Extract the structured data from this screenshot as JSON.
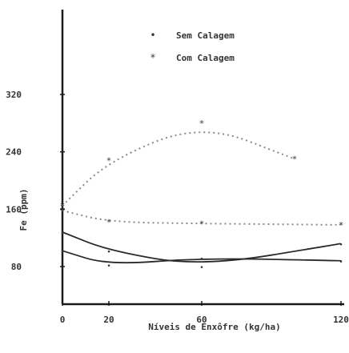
{
  "chart_data": {
    "type": "line",
    "title": "",
    "xlabel": "Níveis de Enxôfre (kg/ha)",
    "ylabel": "Fe (ppm)",
    "xlim": [
      0,
      120
    ],
    "ylim": [
      20,
      420
    ],
    "xticks": [
      0,
      20,
      60,
      120
    ],
    "xtick_labels": [
      "0",
      "20",
      "60",
      "120"
    ],
    "yticks": [
      80,
      160,
      240,
      320
    ],
    "ytick_labels": [
      "80",
      "160",
      "240",
      "320"
    ],
    "grid": false,
    "legend_position": "top-center",
    "legend": [
      {
        "marker": "•",
        "label": "Sem Calagem"
      },
      {
        "marker": "*",
        "label": "Com Calagem"
      }
    ],
    "series": [
      {
        "style": "dotted",
        "color": "#8a8a8a",
        "x": [
          0,
          20,
          60,
          100
        ],
        "y": [
          165,
          228,
          280,
          230
        ]
      },
      {
        "style": "dotted",
        "color": "#8a8a8a",
        "x": [
          0,
          20,
          60,
          120
        ],
        "y": [
          158,
          142,
          140,
          138
        ]
      },
      {
        "style": "solid",
        "color": "#2a2a2a",
        "x": [
          0,
          20,
          60,
          120
        ],
        "y": [
          128,
          102,
          80,
          112
        ]
      },
      {
        "style": "solid",
        "color": "#2a2a2a",
        "x": [
          0,
          20,
          60,
          120
        ],
        "y": [
          102,
          82,
          92,
          88
        ]
      }
    ]
  }
}
